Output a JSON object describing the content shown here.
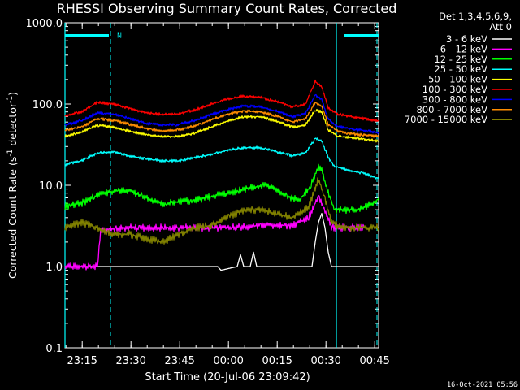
{
  "chart_data": {
    "type": "line",
    "title": "RHESSI Observing Summary Count Rates, Corrected",
    "xlabel": "Start Time (20-Jul-06 23:09:42)",
    "ylabel_main": "Corrected Count Rate (s",
    "ylabel_sup1": "-1",
    "ylabel_mid": " detector",
    "ylabel_sup2": "-1",
    "ylabel_end": ")",
    "yscale": "log",
    "ylim": [
      0.1,
      1000
    ],
    "xlim_minutes": [
      0,
      96.5
    ],
    "y_ticks": [
      {
        "value": 0.1,
        "label": "0.1"
      },
      {
        "value": 1,
        "label": "1.0"
      },
      {
        "value": 10,
        "label": "10.0"
      },
      {
        "value": 100,
        "label": "100.0"
      },
      {
        "value": 1000,
        "label": "1000.0"
      }
    ],
    "x_ticks": [
      {
        "value": 5.3,
        "label": "23:15"
      },
      {
        "value": 20.3,
        "label": "23:30"
      },
      {
        "value": 35.3,
        "label": "23:45"
      },
      {
        "value": 50.3,
        "label": "00:00"
      },
      {
        "value": 65.3,
        "label": "00:15"
      },
      {
        "value": 80.3,
        "label": "00:30"
      },
      {
        "value": 95.3,
        "label": "00:45"
      }
    ],
    "legend_header": [
      "Det 1,3,4,5,6,9,",
      "Att 0"
    ],
    "legend_position": "top-right",
    "series": [
      {
        "name": "3 - 6 keV",
        "color": "#ffffff",
        "points": [
          [
            0,
            1.0
          ],
          [
            12,
            1.0
          ],
          [
            15,
            1.0
          ],
          [
            47,
            1.0
          ],
          [
            48,
            0.9
          ],
          [
            53,
            1.0
          ],
          [
            54,
            1.4
          ],
          [
            55,
            1.0
          ],
          [
            57,
            1.0
          ],
          [
            58,
            1.5
          ],
          [
            59,
            1.0
          ],
          [
            76,
            1.0
          ],
          [
            77,
            2.0
          ],
          [
            78,
            3.5
          ],
          [
            79,
            4.5
          ],
          [
            80,
            3.0
          ],
          [
            81,
            1.5
          ],
          [
            82,
            1.0
          ],
          [
            96.5,
            1.0
          ]
        ]
      },
      {
        "name": "6 - 12 keV",
        "color": "#ff00ff",
        "points": [
          [
            0,
            1.0
          ],
          [
            10,
            1.0
          ],
          [
            11,
            2.8
          ],
          [
            20,
            3.0
          ],
          [
            30,
            3.0
          ],
          [
            40,
            3.0
          ],
          [
            50,
            3.0
          ],
          [
            60,
            3.2
          ],
          [
            70,
            3.2
          ],
          [
            75,
            4.0
          ],
          [
            78,
            7.5
          ],
          [
            80,
            5.0
          ],
          [
            82,
            3.0
          ],
          [
            85,
            3.0
          ],
          [
            90,
            3.0
          ],
          [
            92,
            3.0
          ]
        ]
      },
      {
        "name": "12 - 25 keV",
        "color": "#00ff00",
        "points": [
          [
            0,
            5.5
          ],
          [
            5,
            6.0
          ],
          [
            10,
            7.5
          ],
          [
            15,
            8.5
          ],
          [
            20,
            8.5
          ],
          [
            25,
            7.0
          ],
          [
            30,
            6.0
          ],
          [
            40,
            6.5
          ],
          [
            50,
            8.0
          ],
          [
            58,
            9.5
          ],
          [
            62,
            10.0
          ],
          [
            68,
            7.5
          ],
          [
            72,
            6.5
          ],
          [
            75,
            9.0
          ],
          [
            78,
            17.0
          ],
          [
            79,
            15.0
          ],
          [
            81,
            8.0
          ],
          [
            83,
            5.0
          ],
          [
            90,
            5.0
          ],
          [
            95,
            6.0
          ],
          [
            96.5,
            7.0
          ]
        ]
      },
      {
        "name": "25 - 50 keV",
        "color": "#00ffff",
        "points": [
          [
            0,
            18.0
          ],
          [
            5,
            20.0
          ],
          [
            10,
            25.0
          ],
          [
            15,
            26.0
          ],
          [
            20,
            23.0
          ],
          [
            25,
            21.0
          ],
          [
            30,
            20.0
          ],
          [
            35,
            20.0
          ],
          [
            40,
            22.0
          ],
          [
            45,
            24.0
          ],
          [
            50,
            27.0
          ],
          [
            55,
            29.0
          ],
          [
            60,
            29.0
          ],
          [
            65,
            26.0
          ],
          [
            70,
            23.0
          ],
          [
            74,
            25.0
          ],
          [
            77,
            38.0
          ],
          [
            79,
            35.0
          ],
          [
            81,
            22.0
          ],
          [
            83,
            17.0
          ],
          [
            88,
            15.0
          ],
          [
            92,
            14.0
          ],
          [
            96.5,
            12.0
          ]
        ]
      },
      {
        "name": "50 - 100 keV",
        "color": "#ffff00",
        "points": [
          [
            0,
            40.0
          ],
          [
            5,
            45.0
          ],
          [
            10,
            55.0
          ],
          [
            15,
            52.0
          ],
          [
            20,
            46.0
          ],
          [
            25,
            42.0
          ],
          [
            30,
            40.0
          ],
          [
            35,
            40.0
          ],
          [
            40,
            44.0
          ],
          [
            45,
            52.0
          ],
          [
            50,
            62.0
          ],
          [
            55,
            70.0
          ],
          [
            60,
            70.0
          ],
          [
            65,
            62.0
          ],
          [
            70,
            52.0
          ],
          [
            74,
            55.0
          ],
          [
            77,
            85.0
          ],
          [
            79,
            80.0
          ],
          [
            81,
            48.0
          ],
          [
            84,
            40.0
          ],
          [
            90,
            38.0
          ],
          [
            96.5,
            35.0
          ]
        ]
      },
      {
        "name": "100 - 300 keV",
        "color": "#ff0000",
        "points": [
          [
            0,
            72.0
          ],
          [
            5,
            80.0
          ],
          [
            10,
            105.0
          ],
          [
            15,
            100.0
          ],
          [
            20,
            88.0
          ],
          [
            25,
            78.0
          ],
          [
            30,
            74.0
          ],
          [
            35,
            76.0
          ],
          [
            40,
            85.0
          ],
          [
            45,
            100.0
          ],
          [
            50,
            115.0
          ],
          [
            55,
            125.0
          ],
          [
            60,
            122.0
          ],
          [
            65,
            108.0
          ],
          [
            70,
            92.0
          ],
          [
            74,
            100.0
          ],
          [
            77,
            190.0
          ],
          [
            79,
            160.0
          ],
          [
            81,
            90.0
          ],
          [
            84,
            75.0
          ],
          [
            90,
            68.0
          ],
          [
            96.5,
            62.0
          ]
        ]
      },
      {
        "name": "300 - 800 keV",
        "color": "#0000ff",
        "points": [
          [
            0,
            55.0
          ],
          [
            5,
            62.0
          ],
          [
            10,
            78.0
          ],
          [
            15,
            75.0
          ],
          [
            20,
            66.0
          ],
          [
            25,
            58.0
          ],
          [
            30,
            55.0
          ],
          [
            35,
            56.0
          ],
          [
            40,
            63.0
          ],
          [
            45,
            74.0
          ],
          [
            50,
            85.0
          ],
          [
            55,
            95.0
          ],
          [
            60,
            92.0
          ],
          [
            65,
            82.0
          ],
          [
            70,
            70.0
          ],
          [
            74,
            76.0
          ],
          [
            77,
            130.0
          ],
          [
            79,
            115.0
          ],
          [
            81,
            65.0
          ],
          [
            84,
            53.0
          ],
          [
            90,
            48.0
          ],
          [
            96.5,
            45.0
          ]
        ]
      },
      {
        "name": "800 - 7000 keV",
        "color": "#ff8c00",
        "points": [
          [
            0,
            48.0
          ],
          [
            5,
            52.0
          ],
          [
            10,
            66.0
          ],
          [
            15,
            63.0
          ],
          [
            20,
            56.0
          ],
          [
            25,
            50.0
          ],
          [
            30,
            47.0
          ],
          [
            35,
            48.0
          ],
          [
            40,
            54.0
          ],
          [
            45,
            64.0
          ],
          [
            50,
            75.0
          ],
          [
            55,
            82.0
          ],
          [
            60,
            80.0
          ],
          [
            65,
            72.0
          ],
          [
            70,
            60.0
          ],
          [
            74,
            66.0
          ],
          [
            77,
            105.0
          ],
          [
            79,
            95.0
          ],
          [
            81,
            56.0
          ],
          [
            84,
            46.0
          ],
          [
            90,
            42.0
          ],
          [
            96.5,
            40.0
          ]
        ]
      },
      {
        "name": "7000 - 15000 keV",
        "color": "#808000",
        "points": [
          [
            0,
            3.0
          ],
          [
            5,
            3.5
          ],
          [
            10,
            3.0
          ],
          [
            15,
            2.5
          ],
          [
            20,
            2.5
          ],
          [
            25,
            2.2
          ],
          [
            30,
            2.0
          ],
          [
            35,
            2.5
          ],
          [
            40,
            3.0
          ],
          [
            45,
            3.2
          ],
          [
            50,
            4.0
          ],
          [
            55,
            5.0
          ],
          [
            60,
            5.0
          ],
          [
            65,
            4.5
          ],
          [
            70,
            4.0
          ],
          [
            75,
            5.5
          ],
          [
            78,
            12.0
          ],
          [
            80,
            7.0
          ],
          [
            82,
            3.5
          ],
          [
            85,
            3.0
          ],
          [
            90,
            3.0
          ],
          [
            96.5,
            3.0
          ]
        ]
      }
    ],
    "markers": {
      "night_bars_y": 700,
      "night_bars": [
        [
          0,
          13.5
        ],
        [
          85.8,
          96.5
        ]
      ],
      "night_label": "N",
      "night_label_x": 16,
      "dashed_lines": [
        14,
        96.5
      ],
      "solid_lines": [
        0,
        83.5
      ]
    }
  },
  "timestamp": "16-Oct-2021 05:56"
}
